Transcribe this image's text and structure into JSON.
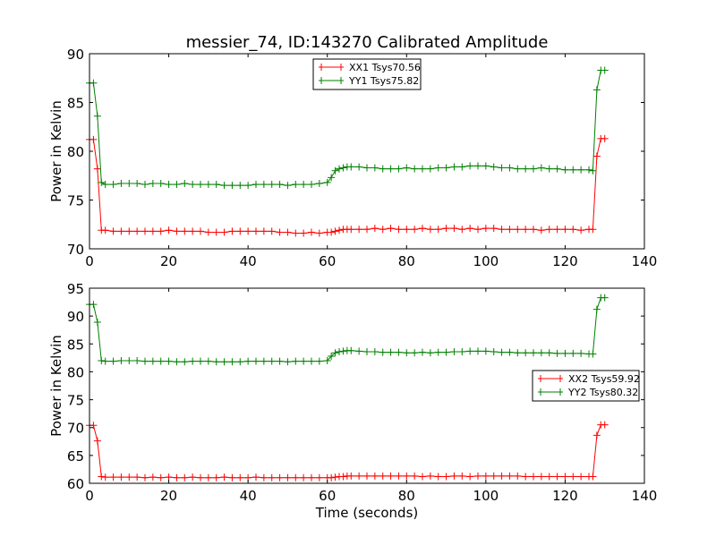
{
  "title": "messier_74, ID:143270 Calibrated Amplitude",
  "colors": {
    "xx": "#ff0000",
    "yy": "#008000"
  },
  "chart_data": [
    {
      "type": "line",
      "title": "messier_74, ID:143270 Calibrated Amplitude",
      "xlabel": "",
      "ylabel": "Power in Kelvin",
      "xlim": [
        0,
        140
      ],
      "ylim": [
        70,
        90
      ],
      "xticks": [
        0,
        20,
        40,
        60,
        80,
        100,
        120,
        140
      ],
      "yticks": [
        70,
        75,
        80,
        85,
        90
      ],
      "legend_position": "upper-center",
      "x": [
        0,
        1,
        2,
        3,
        4,
        6,
        8,
        10,
        12,
        14,
        16,
        18,
        20,
        22,
        24,
        26,
        28,
        30,
        32,
        34,
        36,
        38,
        40,
        42,
        44,
        46,
        48,
        50,
        52,
        54,
        56,
        58,
        60,
        61,
        62,
        63,
        64,
        65,
        66,
        68,
        70,
        72,
        74,
        76,
        78,
        80,
        82,
        84,
        86,
        88,
        90,
        92,
        94,
        96,
        98,
        100,
        102,
        104,
        106,
        108,
        110,
        112,
        114,
        116,
        118,
        120,
        122,
        124,
        126,
        127,
        128,
        129,
        130
      ],
      "series": [
        {
          "name": "XX1 Tsys70.56",
          "color": "#ff0000",
          "values": [
            81.2,
            81.2,
            78.2,
            71.9,
            71.9,
            71.8,
            71.8,
            71.8,
            71.8,
            71.8,
            71.8,
            71.8,
            71.9,
            71.8,
            71.8,
            71.8,
            71.8,
            71.7,
            71.7,
            71.7,
            71.8,
            71.8,
            71.8,
            71.8,
            71.8,
            71.8,
            71.7,
            71.7,
            71.6,
            71.6,
            71.7,
            71.6,
            71.7,
            71.7,
            71.8,
            71.9,
            72.0,
            72.0,
            72.0,
            72.0,
            72.0,
            72.1,
            72.0,
            72.1,
            72.0,
            72.0,
            72.0,
            72.1,
            72.0,
            72.0,
            72.1,
            72.1,
            72.0,
            72.1,
            72.0,
            72.1,
            72.1,
            72.0,
            72.0,
            72.0,
            72.0,
            72.0,
            71.9,
            72.0,
            72.0,
            72.0,
            72.0,
            71.9,
            72.0,
            72.0,
            79.5,
            81.3,
            81.3
          ]
        },
        {
          "name": "YY1 Tsys75.82",
          "color": "#008000",
          "values": [
            87.0,
            87.0,
            83.6,
            76.8,
            76.6,
            76.6,
            76.7,
            76.7,
            76.7,
            76.6,
            76.7,
            76.7,
            76.6,
            76.6,
            76.7,
            76.6,
            76.6,
            76.6,
            76.6,
            76.5,
            76.5,
            76.5,
            76.5,
            76.6,
            76.6,
            76.6,
            76.6,
            76.5,
            76.6,
            76.6,
            76.6,
            76.7,
            76.8,
            77.3,
            78.0,
            78.2,
            78.3,
            78.4,
            78.4,
            78.4,
            78.3,
            78.3,
            78.2,
            78.2,
            78.2,
            78.3,
            78.2,
            78.2,
            78.2,
            78.3,
            78.3,
            78.4,
            78.4,
            78.5,
            78.5,
            78.5,
            78.4,
            78.3,
            78.3,
            78.2,
            78.2,
            78.2,
            78.3,
            78.2,
            78.2,
            78.1,
            78.1,
            78.1,
            78.1,
            78.0,
            86.3,
            88.3,
            88.3
          ]
        }
      ]
    },
    {
      "type": "line",
      "title": "",
      "xlabel": "Time (seconds)",
      "ylabel": "Power in Kelvin",
      "xlim": [
        0,
        140
      ],
      "ylim": [
        60,
        95
      ],
      "xticks": [
        0,
        20,
        40,
        60,
        80,
        100,
        120,
        140
      ],
      "yticks": [
        60,
        65,
        70,
        75,
        80,
        85,
        90,
        95
      ],
      "legend_position": "center-right",
      "x": [
        0,
        1,
        2,
        3,
        4,
        6,
        8,
        10,
        12,
        14,
        16,
        18,
        20,
        22,
        24,
        26,
        28,
        30,
        32,
        34,
        36,
        38,
        40,
        42,
        44,
        46,
        48,
        50,
        52,
        54,
        56,
        58,
        60,
        61,
        62,
        63,
        64,
        65,
        66,
        68,
        70,
        72,
        74,
        76,
        78,
        80,
        82,
        84,
        86,
        88,
        90,
        92,
        94,
        96,
        98,
        100,
        102,
        104,
        106,
        108,
        110,
        112,
        114,
        116,
        118,
        120,
        122,
        124,
        126,
        127,
        128,
        129,
        130
      ],
      "series": [
        {
          "name": "XX2 Tsys59.92",
          "color": "#ff0000",
          "values": [
            70.4,
            70.4,
            67.6,
            61.2,
            61.1,
            61.1,
            61.1,
            61.1,
            61.1,
            61.0,
            61.1,
            61.0,
            61.1,
            61.0,
            61.0,
            61.1,
            61.0,
            61.0,
            61.0,
            61.1,
            61.0,
            61.0,
            61.0,
            61.1,
            61.0,
            61.0,
            61.0,
            61.0,
            61.0,
            61.0,
            61.0,
            61.0,
            61.0,
            61.0,
            61.1,
            61.2,
            61.2,
            61.3,
            61.3,
            61.3,
            61.3,
            61.3,
            61.3,
            61.3,
            61.3,
            61.3,
            61.3,
            61.2,
            61.3,
            61.2,
            61.2,
            61.3,
            61.3,
            61.2,
            61.3,
            61.3,
            61.3,
            61.3,
            61.3,
            61.3,
            61.2,
            61.2,
            61.2,
            61.2,
            61.2,
            61.2,
            61.2,
            61.2,
            61.2,
            61.2,
            68.6,
            70.5,
            70.5
          ]
        },
        {
          "name": "YY2 Tsys80.32",
          "color": "#008000",
          "values": [
            92.1,
            92.1,
            88.9,
            82.0,
            81.9,
            81.9,
            82.0,
            82.0,
            82.0,
            81.9,
            81.9,
            81.9,
            81.9,
            81.8,
            81.8,
            81.9,
            81.9,
            81.9,
            81.8,
            81.8,
            81.8,
            81.8,
            81.9,
            81.9,
            81.9,
            81.9,
            81.9,
            81.8,
            81.9,
            81.9,
            81.9,
            81.9,
            82.0,
            82.8,
            83.4,
            83.6,
            83.7,
            83.8,
            83.8,
            83.7,
            83.6,
            83.6,
            83.5,
            83.5,
            83.5,
            83.4,
            83.4,
            83.5,
            83.4,
            83.5,
            83.5,
            83.6,
            83.6,
            83.7,
            83.7,
            83.7,
            83.6,
            83.5,
            83.5,
            83.4,
            83.4,
            83.4,
            83.4,
            83.4,
            83.3,
            83.3,
            83.3,
            83.3,
            83.2,
            83.2,
            91.2,
            93.3,
            93.3
          ]
        }
      ]
    }
  ]
}
